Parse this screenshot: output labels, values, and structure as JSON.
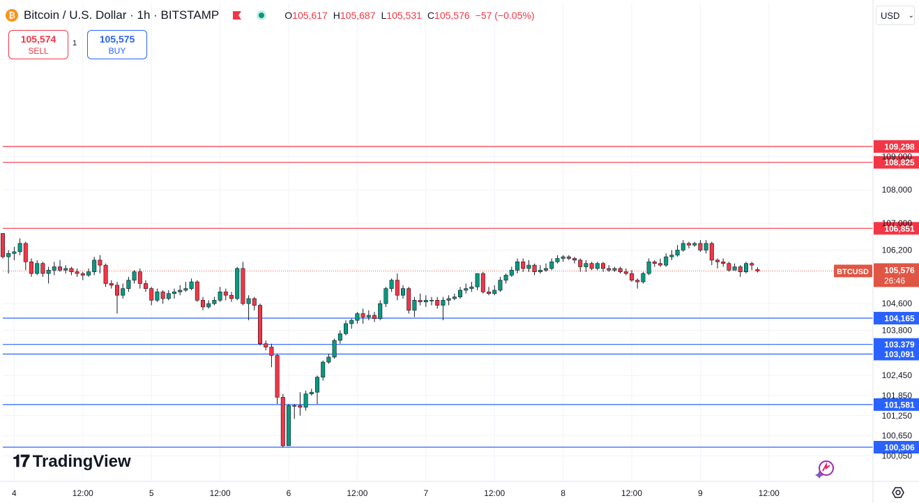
{
  "header": {
    "symbol": "Bitcoin / U.S. Dollar · 1h · BITSTAMP",
    "coin_icon": "bitcoin-icon",
    "ohlc": {
      "o_label": "O",
      "o": "105,617",
      "h_label": "H",
      "h": "105,687",
      "l_label": "L",
      "l": "105,531",
      "c_label": "C",
      "c": "105,576",
      "change": "−57 (−0.05%)"
    }
  },
  "trade": {
    "sell_price": "105,574",
    "sell_label": "SELL",
    "quantity": "1",
    "buy_price": "105,575",
    "buy_label": "BUY"
  },
  "currency": {
    "selected": "USD"
  },
  "branding": {
    "logo_text": "TradingView"
  },
  "colors": {
    "up": "#089981",
    "down": "#f23645",
    "resistance": "#f23645",
    "support": "#2962ff",
    "price_tag": "#e05644"
  },
  "chart_data": {
    "type": "candlestick",
    "timeframe": "1h",
    "symbol_tag": "BTCUSD",
    "last_price": 105576,
    "last_price_label": "105,576",
    "countdown": "26:46",
    "y_ticks": [
      100050,
      100650,
      101250,
      101850,
      102450,
      103800,
      104600,
      106200,
      107000,
      108000,
      109000
    ],
    "y_tick_labels": [
      "100,050",
      "100,650",
      "101,250",
      "101,850",
      "102,450",
      "103,800",
      "104,600",
      "106,200",
      "107,000",
      "108,000",
      "109,000"
    ],
    "x_ticks": [
      {
        "label": "4",
        "hour": 2
      },
      {
        "label": "12:00",
        "hour": 14
      },
      {
        "label": "5",
        "hour": 26
      },
      {
        "label": "12:00",
        "hour": 38
      },
      {
        "label": "6",
        "hour": 50
      },
      {
        "label": "12:00",
        "hour": 62
      },
      {
        "label": "7",
        "hour": 74
      },
      {
        "label": "12:00",
        "hour": 86
      },
      {
        "label": "8",
        "hour": 98
      },
      {
        "label": "12:00",
        "hour": 110
      },
      {
        "label": "9",
        "hour": 122
      },
      {
        "label": "12:00",
        "hour": 134
      }
    ],
    "resistance_levels": [
      {
        "value": 109298,
        "label": "109,298"
      },
      {
        "value": 108825,
        "label": "108,825"
      },
      {
        "value": 106851,
        "label": "106,851"
      }
    ],
    "support_levels": [
      {
        "value": 104165,
        "label": "104,165"
      },
      {
        "value": 103379,
        "label": "103,379"
      },
      {
        "value": 103091,
        "label": "103,091"
      },
      {
        "value": 101581,
        "label": "101,581"
      },
      {
        "value": 100306,
        "label": "100,306"
      }
    ],
    "candles": [
      [
        106700,
        106000,
        106700,
        105950
      ],
      [
        106000,
        106100,
        106200,
        105500
      ],
      [
        106100,
        106150,
        106300,
        105900
      ],
      [
        106150,
        106400,
        106550,
        106050
      ],
      [
        106400,
        105850,
        106450,
        105600
      ],
      [
        105850,
        105500,
        105950,
        105400
      ],
      [
        105500,
        105800,
        105900,
        105450
      ],
      [
        105800,
        105500,
        105850,
        105400
      ],
      [
        105500,
        105600,
        105700,
        105200
      ],
      [
        105600,
        105700,
        105850,
        105450
      ],
      [
        105700,
        105600,
        105900,
        105550
      ],
      [
        105600,
        105650,
        105750,
        105500
      ],
      [
        105650,
        105550,
        105700,
        105450
      ],
      [
        105550,
        105500,
        105650,
        105400
      ],
      [
        105500,
        105450,
        105550,
        105300
      ],
      [
        105450,
        105550,
        105650,
        105400
      ],
      [
        105550,
        105900,
        106000,
        105450
      ],
      [
        105900,
        105750,
        106050,
        105500
      ],
      [
        105750,
        105200,
        105800,
        105100
      ],
      [
        105200,
        105150,
        105300,
        105050
      ],
      [
        105150,
        104850,
        105250,
        104300
      ],
      [
        104850,
        105050,
        105200,
        104750
      ],
      [
        105050,
        105300,
        105400,
        104950
      ],
      [
        105300,
        105550,
        105600,
        105200
      ],
      [
        105550,
        105200,
        105650,
        105050
      ],
      [
        105200,
        105050,
        105300,
        104950
      ],
      [
        105050,
        104700,
        105100,
        104550
      ],
      [
        104700,
        104950,
        105050,
        104650
      ],
      [
        104950,
        104750,
        105000,
        104600
      ],
      [
        104750,
        104900,
        105000,
        104700
      ],
      [
        104900,
        104950,
        105050,
        104750
      ],
      [
        104950,
        105000,
        105150,
        104850
      ],
      [
        105000,
        105050,
        105250,
        104950
      ],
      [
        105050,
        105250,
        105350,
        105000
      ],
      [
        105250,
        104700,
        105300,
        104650
      ],
      [
        104700,
        104500,
        104800,
        104400
      ],
      [
        104500,
        104600,
        104700,
        104450
      ],
      [
        104600,
        104700,
        104800,
        104550
      ],
      [
        104700,
        104950,
        105100,
        104650
      ],
      [
        104950,
        104850,
        105050,
        104700
      ],
      [
        104850,
        104750,
        104950,
        104650
      ],
      [
        104750,
        105650,
        105700,
        104700
      ],
      [
        105650,
        104600,
        105850,
        104550
      ],
      [
        104600,
        104750,
        104850,
        104100
      ],
      [
        104750,
        104550,
        104800,
        104400
      ],
      [
        104550,
        103400,
        104600,
        103350
      ],
      [
        103400,
        103300,
        103500,
        103200
      ],
      [
        103300,
        103050,
        103400,
        102700
      ],
      [
        103050,
        101800,
        103100,
        101600
      ],
      [
        101800,
        100350,
        101900,
        100300
      ],
      [
        100350,
        101550,
        101600,
        100350
      ],
      [
        101550,
        101550,
        101600,
        101150
      ],
      [
        101550,
        101500,
        101950,
        101250
      ],
      [
        101500,
        101900,
        102000,
        101400
      ],
      [
        101900,
        101950,
        102050,
        101850
      ],
      [
        101950,
        102400,
        102450,
        101600
      ],
      [
        102400,
        102850,
        102900,
        102300
      ],
      [
        102850,
        103000,
        103100,
        102800
      ],
      [
        103000,
        103500,
        103550,
        102950
      ],
      [
        103500,
        103700,
        103800,
        103400
      ],
      [
        103700,
        104000,
        104100,
        103650
      ],
      [
        104000,
        104100,
        104150,
        103850
      ],
      [
        104100,
        104300,
        104350,
        104000
      ],
      [
        104300,
        104200,
        104450,
        104000
      ],
      [
        104200,
        104250,
        104400,
        104100
      ],
      [
        104250,
        104150,
        104350,
        104050
      ],
      [
        104150,
        104600,
        104700,
        104100
      ],
      [
        104600,
        105050,
        105100,
        104500
      ],
      [
        105050,
        105300,
        105350,
        104950
      ],
      [
        105300,
        104850,
        105500,
        104700
      ],
      [
        104850,
        105050,
        105150,
        104750
      ],
      [
        105050,
        104400,
        105100,
        104300
      ],
      [
        104400,
        104700,
        104800,
        104200
      ],
      [
        104700,
        104650,
        104900,
        104550
      ],
      [
        104650,
        104700,
        104850,
        104500
      ],
      [
        104700,
        104700,
        104800,
        104550
      ],
      [
        104700,
        104550,
        104800,
        104450
      ],
      [
        104550,
        104700,
        104800,
        104100
      ],
      [
        104700,
        104750,
        104850,
        104550
      ],
      [
        104750,
        104800,
        104900,
        104700
      ],
      [
        104800,
        105000,
        105100,
        104750
      ],
      [
        105000,
        105050,
        105200,
        104900
      ],
      [
        105050,
        105100,
        105250,
        104950
      ],
      [
        105100,
        105500,
        105500,
        105000
      ],
      [
        105500,
        104950,
        105550,
        104900
      ],
      [
        104950,
        104900,
        105100,
        104850
      ],
      [
        104900,
        105000,
        105150,
        104850
      ],
      [
        105000,
        105300,
        105400,
        104950
      ],
      [
        105300,
        105450,
        105500,
        105200
      ],
      [
        105450,
        105600,
        105700,
        105400
      ],
      [
        105600,
        105850,
        105950,
        105500
      ],
      [
        105850,
        105650,
        105950,
        105550
      ],
      [
        105650,
        105750,
        105900,
        105550
      ],
      [
        105750,
        105550,
        105800,
        105450
      ],
      [
        105550,
        105600,
        105750,
        105500
      ],
      [
        105600,
        105650,
        105800,
        105550
      ],
      [
        105650,
        105850,
        105950,
        105600
      ],
      [
        105850,
        105950,
        106050,
        105800
      ],
      [
        105950,
        106000,
        106050,
        105850
      ],
      [
        106000,
        105950,
        106050,
        105900
      ],
      [
        105950,
        105900,
        106000,
        105800
      ],
      [
        105900,
        105700,
        105950,
        105550
      ],
      [
        105700,
        105800,
        105900,
        105550
      ],
      [
        105800,
        105650,
        105850,
        105600
      ],
      [
        105650,
        105800,
        105850,
        105600
      ],
      [
        105800,
        105650,
        105850,
        105550
      ],
      [
        105650,
        105600,
        105750,
        105550
      ],
      [
        105600,
        105650,
        105700,
        105550
      ],
      [
        105650,
        105550,
        105700,
        105500
      ],
      [
        105550,
        105500,
        105650,
        105450
      ],
      [
        105500,
        105300,
        105600,
        105250
      ],
      [
        105300,
        105250,
        105350,
        105050
      ],
      [
        105250,
        105500,
        105550,
        105200
      ],
      [
        105500,
        105850,
        105950,
        105450
      ],
      [
        105850,
        105800,
        105900,
        105700
      ],
      [
        105800,
        105750,
        105950,
        105700
      ],
      [
        105750,
        106000,
        106100,
        105700
      ],
      [
        106000,
        106050,
        106200,
        105900
      ],
      [
        106050,
        106200,
        106350,
        106000
      ],
      [
        106200,
        106400,
        106500,
        106150
      ],
      [
        106400,
        106350,
        106450,
        106250
      ],
      [
        106350,
        106400,
        106450,
        106300
      ],
      [
        106400,
        106200,
        106500,
        106150
      ],
      [
        106200,
        106400,
        106500,
        106100
      ],
      [
        106400,
        105900,
        106450,
        105750
      ],
      [
        105900,
        105850,
        105950,
        105650
      ],
      [
        105850,
        105800,
        105950,
        105700
      ],
      [
        105800,
        105600,
        105850,
        105550
      ],
      [
        105600,
        105700,
        105800,
        105650
      ],
      [
        105700,
        105550,
        105750,
        105400
      ],
      [
        105550,
        105800,
        105850,
        105500
      ],
      [
        105800,
        105750,
        105850,
        105600
      ],
      [
        105617,
        105576,
        105687,
        105531
      ]
    ]
  }
}
